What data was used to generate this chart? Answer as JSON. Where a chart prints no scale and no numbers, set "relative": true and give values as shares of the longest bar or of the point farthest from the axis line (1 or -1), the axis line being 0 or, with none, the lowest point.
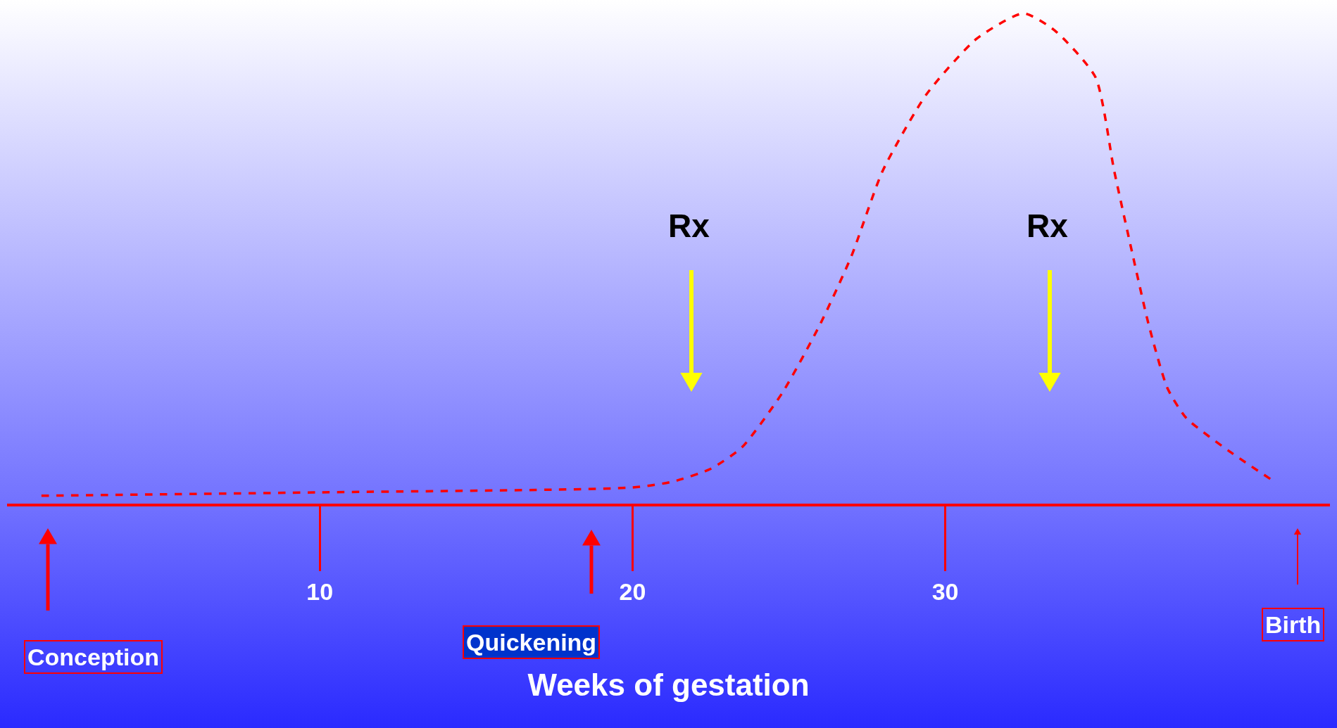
{
  "chart_data": {
    "type": "line",
    "relative": true,
    "xlabel": "Weeks of gestation",
    "x": [
      1.1,
      10,
      20,
      21.3,
      22.5,
      23.5,
      24.8,
      26,
      27,
      28,
      29.4,
      31,
      32.5,
      33.5,
      34.8,
      35.4,
      36,
      36.5,
      37.1,
      37.7,
      39.1,
      40.4
    ],
    "series": [
      {
        "color": "#ff0000",
        "values": [
          0.016,
          0.023,
          0.033,
          0.045,
          0.071,
          0.115,
          0.227,
          0.366,
          0.505,
          0.679,
          0.835,
          0.948,
          1,
          0.965,
          0.87,
          0.679,
          0.505,
          0.366,
          0.236,
          0.175,
          0.106,
          0.05
        ]
      }
    ],
    "xlim": [
      0,
      42.3
    ],
    "xticks": [
      10,
      20,
      30
    ],
    "grid": false,
    "legend": false,
    "marker": "none",
    "line_style": "dashed",
    "annotations": [
      "Rx",
      "Rx",
      "Conception",
      "Quickening",
      "Birth"
    ]
  }
}
